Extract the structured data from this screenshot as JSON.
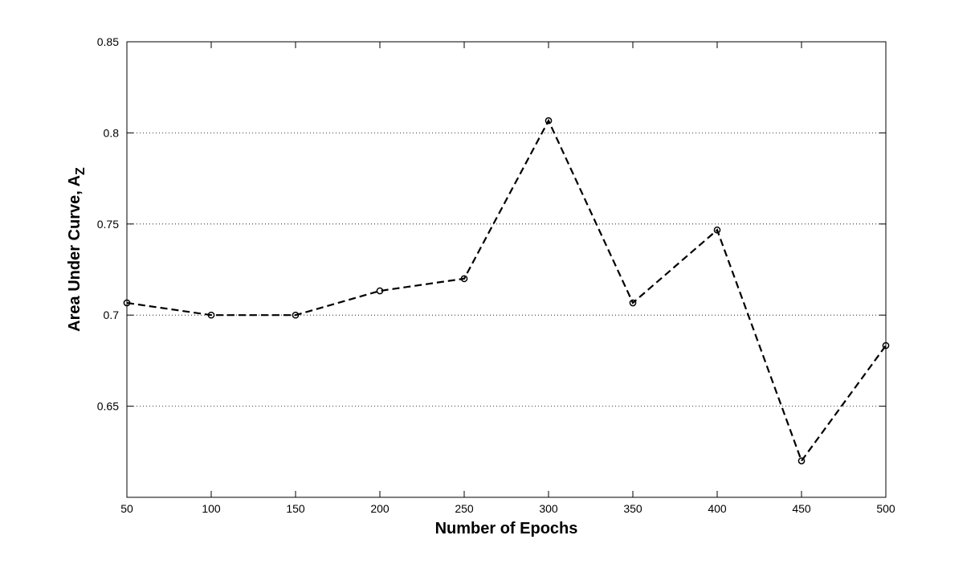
{
  "chart_data": {
    "type": "line",
    "xlabel": "Number of Epochs",
    "ylabel": "Area Under Curve, A",
    "ylabel_subscript": "Z",
    "xlim": [
      50,
      500
    ],
    "ylim": [
      0.6,
      0.85
    ],
    "xticks": [
      "50",
      "100",
      "150",
      "200",
      "250",
      "300",
      "350",
      "400",
      "450",
      "500"
    ],
    "yticks": [
      "0.65",
      "0.7",
      "0.75",
      "0.8",
      "0.85"
    ],
    "grid": "y-dotted",
    "line_style": "dashed",
    "marker": "circle",
    "line_color": "#000000",
    "series": [
      {
        "x": [
          50,
          100,
          150,
          200,
          250,
          300,
          350,
          400,
          450,
          500
        ],
        "values": [
          0.7067,
          0.7,
          0.7,
          0.7133,
          0.72,
          0.8067,
          0.7067,
          0.7467,
          0.62,
          0.6833
        ]
      }
    ]
  }
}
